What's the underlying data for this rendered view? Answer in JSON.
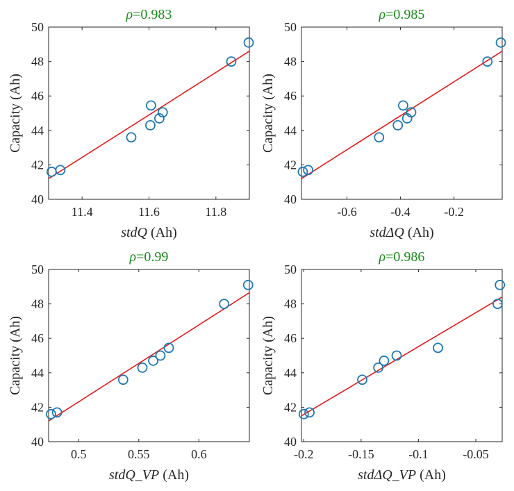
{
  "chart_data": [
    {
      "type": "scatter",
      "title": {
        "symbol": "ρ",
        "value": "=0.983"
      },
      "xlabel": {
        "var": "stdQ",
        "unit": " (Ah)"
      },
      "ylabel": "Capacity (Ah)",
      "xlim": [
        11.3,
        11.9
      ],
      "ylim": [
        40,
        50
      ],
      "xticks": [
        11.4,
        11.6,
        11.8
      ],
      "xtick_labels": [
        "11.4",
        "11.6",
        "11.8"
      ],
      "yticks": [
        40,
        42,
        44,
        46,
        48,
        50
      ],
      "ytick_labels": [
        "40",
        "42",
        "44",
        "46",
        "48",
        "50"
      ],
      "series": [
        {
          "name": "data",
          "style": "circle",
          "color": "#1f77b4",
          "x": [
            11.309,
            11.335,
            11.547,
            11.604,
            11.606,
            11.631,
            11.641,
            11.846,
            11.898
          ],
          "y": [
            41.6,
            41.7,
            43.6,
            44.3,
            45.45,
            44.7,
            45.05,
            48.0,
            49.1
          ]
        },
        {
          "name": "fit",
          "style": "line",
          "color": "#e31a1c",
          "x": [
            11.3,
            11.9
          ],
          "y": [
            41.2,
            48.6
          ]
        }
      ]
    },
    {
      "type": "scatter",
      "title": {
        "symbol": "ρ",
        "value": "=0.985"
      },
      "xlabel": {
        "var": "stdΔQ",
        "unit": " (Ah)"
      },
      "ylabel": "Capacity (Ah)",
      "xlim": [
        -0.77,
        -0.02
      ],
      "ylim": [
        40,
        50
      ],
      "xticks": [
        -0.6,
        -0.4,
        -0.2
      ],
      "xtick_labels": [
        "-0.6",
        "-0.4",
        "-0.2"
      ],
      "yticks": [
        40,
        42,
        44,
        46,
        48,
        50
      ],
      "ytick_labels": [
        "40",
        "42",
        "44",
        "46",
        "48",
        "50"
      ],
      "series": [
        {
          "name": "data",
          "style": "circle",
          "color": "#1f77b4",
          "x": [
            -0.765,
            -0.745,
            -0.48,
            -0.41,
            -0.39,
            -0.375,
            -0.36,
            -0.075,
            -0.025
          ],
          "y": [
            41.6,
            41.7,
            43.6,
            44.3,
            45.45,
            44.7,
            45.05,
            48.0,
            49.1
          ]
        },
        {
          "name": "fit",
          "style": "line",
          "color": "#e31a1c",
          "x": [
            -0.77,
            -0.02
          ],
          "y": [
            41.2,
            48.6
          ]
        }
      ]
    },
    {
      "type": "scatter",
      "title": {
        "symbol": "ρ",
        "value": "=0.99"
      },
      "xlabel": {
        "var": "stdQ_VP",
        "unit": " (Ah)"
      },
      "ylabel": "Capacity (Ah)",
      "xlim": [
        0.475,
        0.642
      ],
      "ylim": [
        40,
        50
      ],
      "xticks": [
        0.5,
        0.55,
        0.6
      ],
      "xtick_labels": [
        "0.5",
        "0.55",
        "0.6"
      ],
      "yticks": [
        40,
        42,
        44,
        46,
        48,
        50
      ],
      "ytick_labels": [
        "40",
        "42",
        "44",
        "46",
        "48",
        "50"
      ],
      "series": [
        {
          "name": "data",
          "style": "circle",
          "color": "#1f77b4",
          "x": [
            0.477,
            0.482,
            0.537,
            0.553,
            0.562,
            0.568,
            0.575,
            0.621,
            0.641
          ],
          "y": [
            41.6,
            41.7,
            43.6,
            44.3,
            44.7,
            45.0,
            45.45,
            48.0,
            49.1
          ]
        },
        {
          "name": "fit",
          "style": "line",
          "color": "#e31a1c",
          "x": [
            0.475,
            0.642
          ],
          "y": [
            41.2,
            48.65
          ]
        }
      ]
    },
    {
      "type": "scatter",
      "title": {
        "symbol": "ρ",
        "value": "=0.986"
      },
      "xlabel": {
        "var": "stdΔQ_VP",
        "unit": " (Ah)"
      },
      "ylabel": "Capacity (Ah)",
      "xlim": [
        -0.202,
        -0.027
      ],
      "ylim": [
        40,
        50
      ],
      "xticks": [
        -0.2,
        -0.15,
        -0.1,
        -0.05
      ],
      "xtick_labels": [
        "-0.2",
        "-0.15",
        "-0.1",
        "-0.05"
      ],
      "yticks": [
        40,
        42,
        44,
        46,
        48,
        50
      ],
      "ytick_labels": [
        "40",
        "42",
        "44",
        "46",
        "48",
        "50"
      ],
      "series": [
        {
          "name": "data",
          "style": "circle",
          "color": "#1f77b4",
          "x": [
            -0.2,
            -0.195,
            -0.149,
            -0.135,
            -0.13,
            -0.119,
            -0.083,
            -0.031,
            -0.029
          ],
          "y": [
            41.6,
            41.7,
            43.6,
            44.3,
            44.7,
            45.0,
            45.45,
            48.0,
            49.1
          ]
        },
        {
          "name": "fit",
          "style": "line",
          "color": "#e31a1c",
          "x": [
            -0.202,
            -0.027
          ],
          "y": [
            41.5,
            48.4
          ]
        }
      ]
    }
  ]
}
